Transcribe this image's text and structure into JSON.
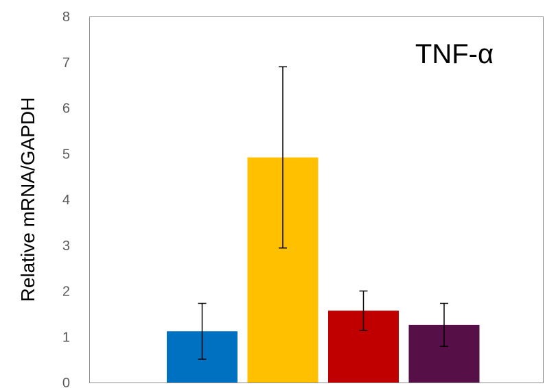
{
  "chart_data": {
    "type": "bar",
    "title": "TNF-α",
    "xlabel": "",
    "ylabel": "Relative mRNA/GAPDH",
    "ylim": [
      0,
      8
    ],
    "yticks": [
      0,
      1,
      2,
      3,
      4,
      5,
      6,
      7,
      8
    ],
    "grid": false,
    "legend": "none",
    "bars": [
      {
        "value": 1.12,
        "error": 0.61,
        "color": "#0070C0"
      },
      {
        "value": 4.92,
        "error": 1.98,
        "color": "#FFC000"
      },
      {
        "value": 1.57,
        "error": 0.43,
        "color": "#C00000"
      },
      {
        "value": 1.26,
        "error": 0.47,
        "color": "#561047"
      }
    ]
  }
}
